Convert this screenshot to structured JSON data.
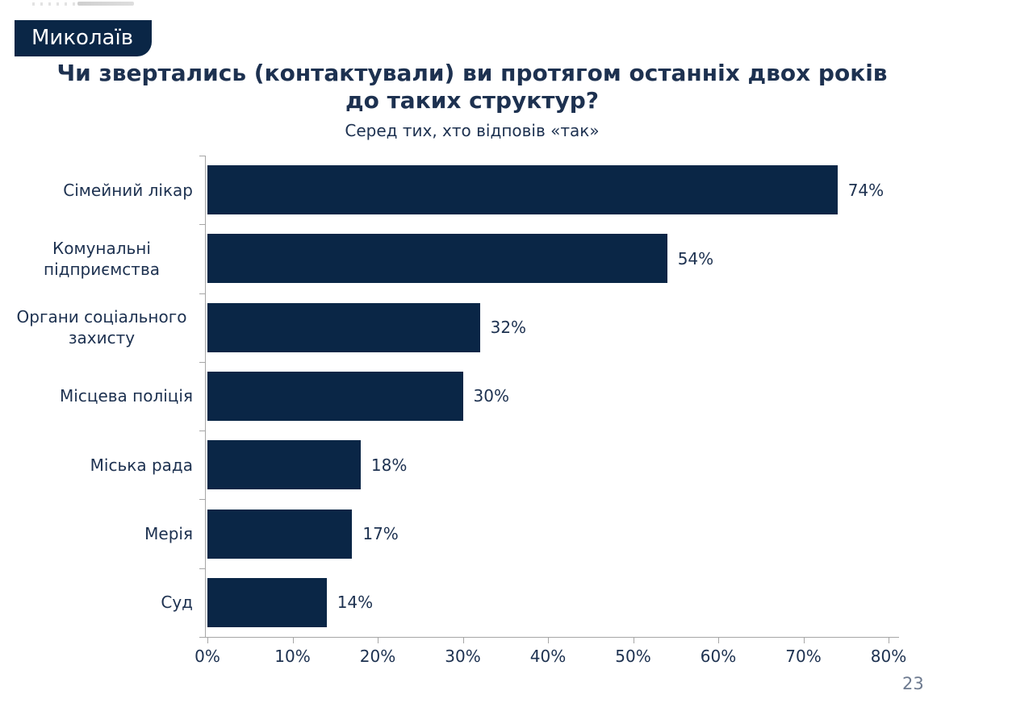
{
  "slide": {
    "region_badge": "Миколаїв",
    "page_number": "23"
  },
  "colors": {
    "bar": "#0a2646",
    "badge_bg": "#0a2646",
    "badge_text": "#ffffff",
    "text": "#1d3150",
    "axis": "#a6a6a6",
    "page_number": "#6d7a8f"
  },
  "chart_data": {
    "type": "bar",
    "orientation": "horizontal",
    "title": "Чи звертались (контактували) ви протягом останніх двох років до таких структур?",
    "title_lines": [
      "Чи звертались (контактували) ви протягом останніх двох років",
      "до таких структур?"
    ],
    "subtitle": "Серед тих, хто відповів «так»",
    "categories": [
      "Сімейний лікар",
      "Комунальні підприємства",
      "Органи соціального захисту",
      "Місцева поліція",
      "Міська рада",
      "Мерія",
      "Суд"
    ],
    "values": [
      74,
      54,
      32,
      30,
      18,
      17,
      14
    ],
    "value_labels": [
      "74%",
      "54%",
      "32%",
      "30%",
      "18%",
      "17%",
      "14%"
    ],
    "xlim": [
      0,
      80
    ],
    "x_ticks": [
      "0%",
      "10%",
      "20%",
      "30%",
      "40%",
      "50%",
      "60%",
      "70%",
      "80%"
    ],
    "legend": "none",
    "grid": "off",
    "value_label_position": "right-of-bar"
  }
}
